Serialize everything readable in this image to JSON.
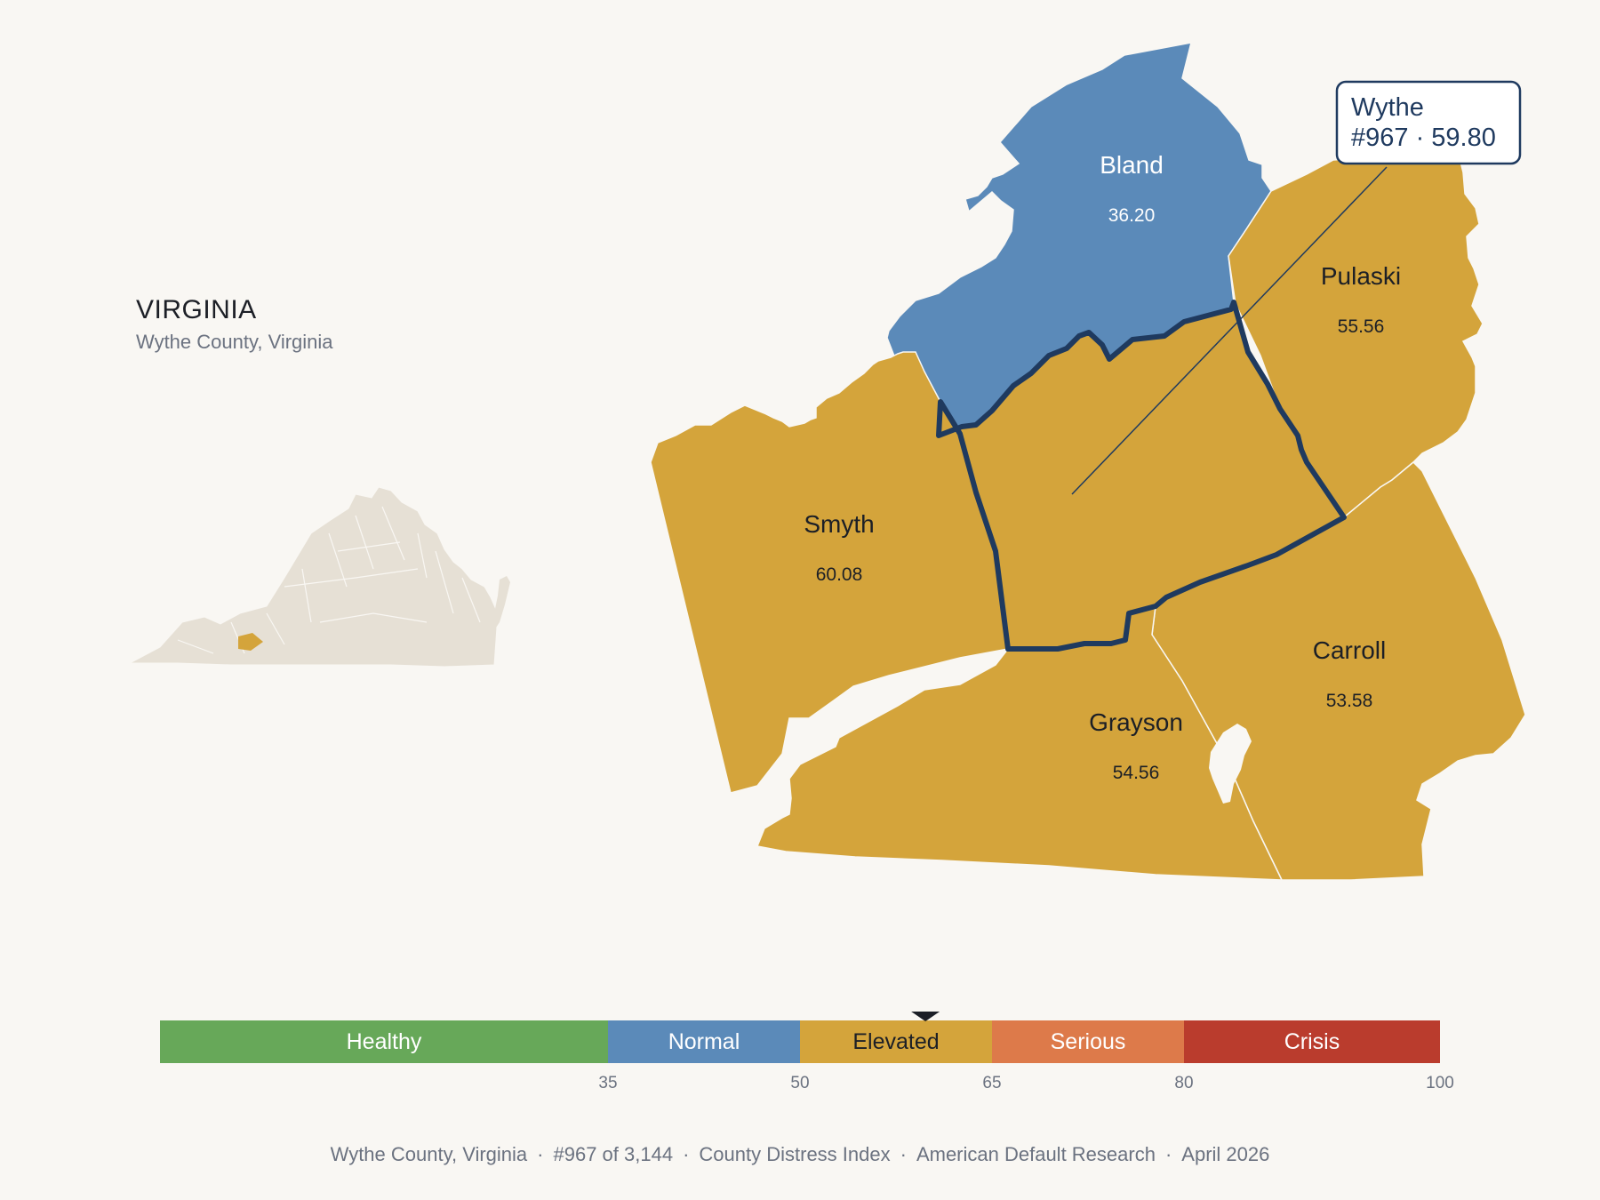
{
  "state": {
    "name": "VIRGINIA",
    "subtitle": "Wythe County, Virginia"
  },
  "colors": {
    "background": "#f9f7f3",
    "healthy": "#67a859",
    "normal": "#5b8ab9",
    "elevated": "#d4a43b",
    "serious": "#dd7a4a",
    "crisis": "#ba3c2d",
    "highlight_outline": "#1f3a5f",
    "state_fill": "#e6e0d5"
  },
  "counties": [
    {
      "id": "bland",
      "name": "Bland",
      "value": "36.20",
      "category": "normal"
    },
    {
      "id": "pulaski",
      "name": "Pulaski",
      "value": "55.56",
      "category": "elevated"
    },
    {
      "id": "smyth",
      "name": "Smyth",
      "value": "60.08",
      "category": "elevated"
    },
    {
      "id": "carroll",
      "name": "Carroll",
      "value": "53.58",
      "category": "elevated"
    },
    {
      "id": "grayson",
      "name": "Grayson",
      "value": "54.56",
      "category": "elevated"
    },
    {
      "id": "wythe",
      "name": "Wythe",
      "value": "59.80",
      "category": "elevated",
      "highlighted": true
    }
  ],
  "callout": {
    "name": "Wythe",
    "detail": "#967 · 59.80"
  },
  "legend": {
    "segments": [
      {
        "label": "Healthy",
        "from": 0,
        "to": 35,
        "color": "#67a859"
      },
      {
        "label": "Normal",
        "from": 35,
        "to": 50,
        "color": "#5b8ab9"
      },
      {
        "label": "Elevated",
        "from": 50,
        "to": 65,
        "color": "#d4a43b"
      },
      {
        "label": "Serious",
        "from": 65,
        "to": 80,
        "color": "#dd7a4a"
      },
      {
        "label": "Crisis",
        "from": 80,
        "to": 100,
        "color": "#ba3c2d"
      }
    ],
    "ticks": [
      "35",
      "50",
      "65",
      "80",
      "100"
    ],
    "marker_value": 59.8
  },
  "footer": {
    "items": [
      "Wythe County, Virginia",
      "#967 of 3,144",
      "County Distress Index",
      "American Default Research",
      "April 2026"
    ]
  }
}
